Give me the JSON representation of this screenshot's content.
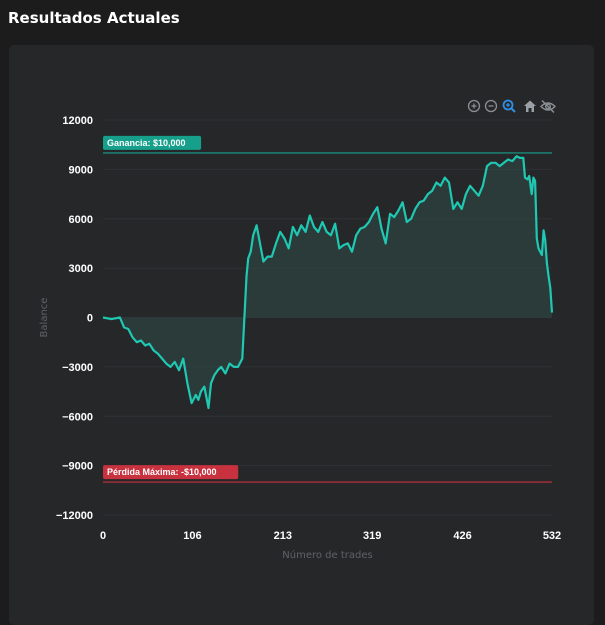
{
  "page": {
    "title": "Resultados Actuales"
  },
  "toolbar": {
    "icons": [
      "zoom-in-icon",
      "zoom-out-icon",
      "zoom-selection-icon",
      "home-reset-icon",
      "eye-off-icon"
    ],
    "active": "zoom-selection-icon"
  },
  "colors": {
    "line": "#1fc8b2",
    "profit": "#16a08c",
    "loss": "#c8313e",
    "fill": "#2e4c48"
  },
  "chart_data": {
    "type": "area",
    "xlabel": "Número de trades",
    "ylabel": "Balance",
    "xlim": [
      0,
      532
    ],
    "ylim": [
      -12000,
      12000
    ],
    "x_ticks": [
      0,
      106,
      213,
      319,
      426,
      532
    ],
    "y_ticks": [
      12000,
      9000,
      6000,
      3000,
      0,
      -3000,
      -6000,
      -9000,
      -12000
    ],
    "y_tick_labels": [
      "12000",
      "9000",
      "6000",
      "3000",
      "0",
      "−3000",
      "−6000",
      "−9000",
      "−12000"
    ],
    "annotations": [
      {
        "label": "Ganancia: $10,000",
        "y": 10000,
        "color": "profit"
      },
      {
        "label": "Pérdida Máxima: -$10,000",
        "y": -10000,
        "color": "loss"
      }
    ],
    "series": [
      {
        "x": [
          0,
          10,
          20,
          25,
          30,
          35,
          40,
          45,
          50,
          55,
          60,
          65,
          70,
          75,
          80,
          85,
          90,
          95,
          100,
          105,
          110,
          113,
          116,
          120,
          125,
          128,
          132,
          136,
          140,
          145,
          150,
          155,
          160,
          165,
          170,
          172,
          175,
          178,
          182,
          186,
          190,
          195,
          200,
          205,
          210,
          215,
          220,
          225,
          230,
          235,
          240,
          245,
          250,
          255,
          260,
          265,
          270,
          275,
          280,
          285,
          290,
          295,
          300,
          305,
          310,
          315,
          320,
          325,
          330,
          335,
          340,
          345,
          350,
          355,
          360,
          365,
          370,
          375,
          380,
          385,
          390,
          395,
          400,
          405,
          410,
          415,
          420,
          425,
          430,
          435,
          440,
          445,
          450,
          455,
          460,
          465,
          470,
          475,
          480,
          485,
          490,
          494,
          498,
          500,
          503,
          505,
          508,
          510,
          512,
          514,
          516,
          518,
          520,
          522,
          524,
          526,
          528,
          530,
          532
        ],
        "y": [
          0,
          -100,
          0,
          -600,
          -700,
          -1200,
          -1500,
          -1400,
          -1700,
          -1600,
          -2000,
          -2200,
          -2500,
          -2800,
          -3000,
          -2700,
          -3200,
          -2500,
          -4000,
          -5200,
          -4700,
          -5000,
          -4500,
          -4200,
          -5500,
          -4000,
          -3500,
          -3200,
          -3000,
          -3400,
          -2800,
          -3000,
          -3000,
          -2500,
          2500,
          3600,
          4000,
          5000,
          5600,
          4500,
          3400,
          3700,
          3700,
          4500,
          5200,
          4800,
          4200,
          5500,
          5000,
          5600,
          5200,
          6200,
          5500,
          5200,
          5800,
          5200,
          5000,
          5700,
          4200,
          4400,
          4500,
          4000,
          5000,
          5400,
          5500,
          5800,
          6300,
          6700,
          5400,
          4500,
          6300,
          6100,
          6500,
          7000,
          5800,
          6000,
          6600,
          7000,
          7100,
          7500,
          7700,
          8200,
          8000,
          8500,
          8200,
          6600,
          7000,
          6600,
          7500,
          8000,
          7700,
          7400,
          8000,
          9200,
          9400,
          9400,
          9200,
          9400,
          9600,
          9500,
          9800,
          9700,
          9700,
          8500,
          8400,
          8600,
          7500,
          8500,
          8300,
          4800,
          4200,
          4000,
          3800,
          5300,
          4700,
          3300,
          2500,
          1800,
          300
        ]
      }
    ]
  }
}
